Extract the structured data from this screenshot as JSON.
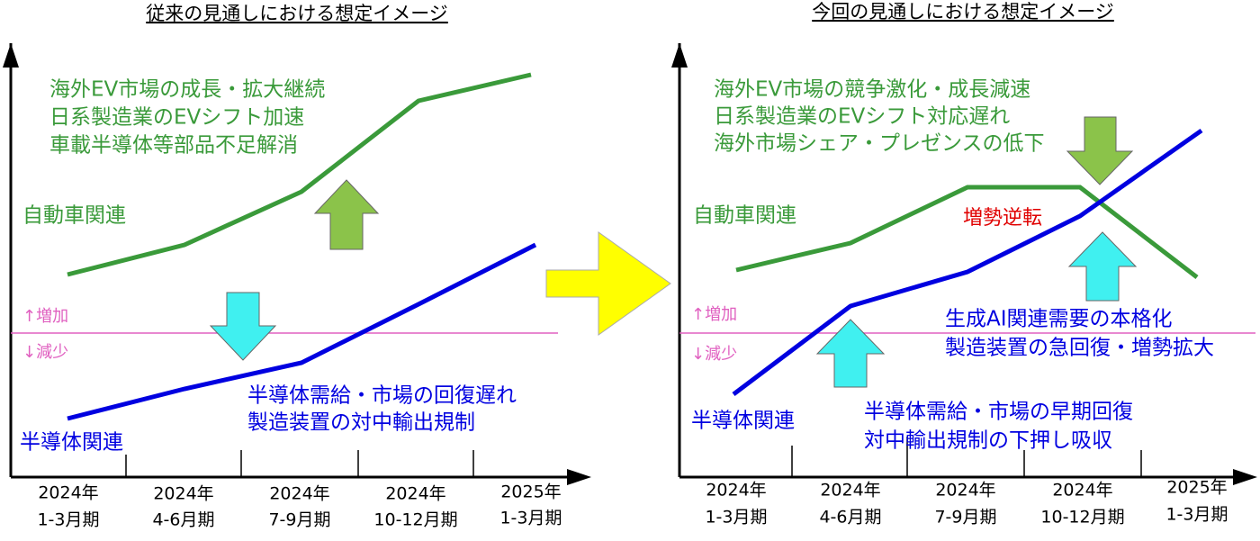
{
  "panels": [
    {
      "title": "従来の見通しにおける想定イメージ",
      "increase_label": "↑増加",
      "decrease_label": "↓減少",
      "auto_notes": [
        "海外EV市場の成長・拡大継続",
        "日系製造業のEVシフト加速",
        "車載半導体等部品不足解消"
      ],
      "auto_label": "自動車関連",
      "semi_notes": [
        "半導体需給・市場の回復遅れ",
        "製造装置の対中輸出規制"
      ],
      "semi_label": "半導体関連",
      "periods": [
        {
          "year": "2024年",
          "quarter": "1-3月期"
        },
        {
          "year": "2024年",
          "quarter": "4-6月期"
        },
        {
          "year": "2024年",
          "quarter": "7-9月期"
        },
        {
          "year": "2024年",
          "quarter": "10-12月期"
        },
        {
          "year": "2025年",
          "quarter": "1-3月期"
        }
      ]
    },
    {
      "title": "今回の見通しにおける想定イメージ",
      "increase_label": "↑増加",
      "decrease_label": "↓減少",
      "auto_notes": [
        "海外EV市場の競争激化・成長減速",
        "日系製造業のEVシフト対応遅れ",
        "海外市場シェア・プレゼンスの低下"
      ],
      "auto_label": "自動車関連",
      "crossover_label": "増勢逆転",
      "ai_notes": [
        "生成AI関連需要の本格化",
        "製造装置の急回復・増勢拡大"
      ],
      "semi_notes": [
        "半導体需給・市場の早期回復",
        "対中輸出規制の下押し吸収"
      ],
      "semi_label": "半導体関連",
      "periods": [
        {
          "year": "2024年",
          "quarter": "1-3月期"
        },
        {
          "year": "2024年",
          "quarter": "4-6月期"
        },
        {
          "year": "2024年",
          "quarter": "7-9月期"
        },
        {
          "year": "2024年",
          "quarter": "10-12月期"
        },
        {
          "year": "2025年",
          "quarter": "1-3月期"
        }
      ]
    }
  ]
}
